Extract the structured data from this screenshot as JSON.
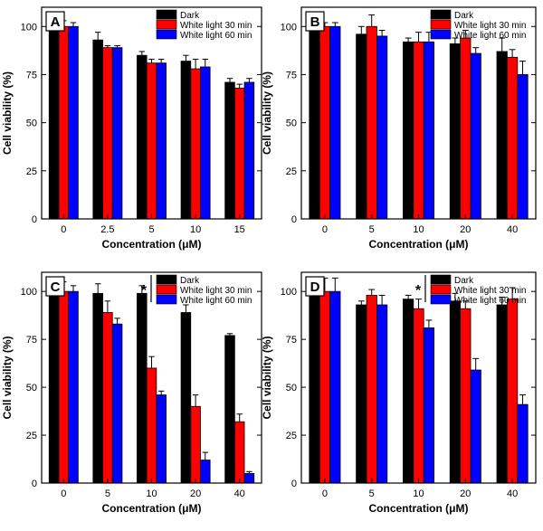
{
  "colors": {
    "Dark": "#000000",
    "White light 30 min": "#ff0000",
    "White light 60 min": "#0000ff"
  },
  "chart_data": [
    {
      "type": "bar",
      "panel_label": "A",
      "xlabel": "Concentration (μM)",
      "ylabel": "Cell viability (%)",
      "ylim": [
        0,
        110
      ],
      "yticks": [
        0,
        25,
        50,
        75,
        100
      ],
      "categories": [
        "0",
        "2.5",
        "5",
        "10",
        "15"
      ],
      "legend_position": "top-right",
      "significance_mark": "",
      "series": [
        {
          "name": "Dark",
          "values": [
            100,
            93,
            85,
            82,
            71
          ],
          "errors": [
            5,
            4,
            2,
            3,
            2
          ]
        },
        {
          "name": "White light 30 min",
          "values": [
            100,
            89,
            81,
            78,
            68
          ],
          "errors": [
            3,
            1,
            2,
            5,
            2
          ]
        },
        {
          "name": "White light 60 min",
          "values": [
            100,
            89,
            81,
            79,
            71
          ],
          "errors": [
            2,
            1,
            2,
            4,
            2
          ]
        }
      ]
    },
    {
      "type": "bar",
      "panel_label": "B",
      "xlabel": "Concentration (μM)",
      "ylabel": "Cell viability (%)",
      "ylim": [
        0,
        110
      ],
      "yticks": [
        0,
        25,
        50,
        75,
        100
      ],
      "categories": [
        "0",
        "5",
        "10",
        "20",
        "40"
      ],
      "legend_position": "top-right",
      "significance_mark": "",
      "series": [
        {
          "name": "Dark",
          "values": [
            100,
            96,
            92,
            91,
            87
          ],
          "errors": [
            2,
            4,
            2,
            3,
            7
          ]
        },
        {
          "name": "White light 30 min",
          "values": [
            100,
            100,
            92,
            94,
            84
          ],
          "errors": [
            2,
            6,
            5,
            4,
            4
          ]
        },
        {
          "name": "White light 60 min",
          "values": [
            100,
            95,
            92,
            86,
            75
          ],
          "errors": [
            2,
            3,
            5,
            3,
            7
          ]
        }
      ]
    },
    {
      "type": "bar",
      "panel_label": "C",
      "xlabel": "Concentration (μM)",
      "ylabel": "Cell viability (%)",
      "ylim": [
        0,
        110
      ],
      "yticks": [
        0,
        25,
        50,
        75,
        100
      ],
      "categories": [
        "0",
        "5",
        "10",
        "20",
        "40"
      ],
      "legend_position": "top-right",
      "significance_mark": "*",
      "series": [
        {
          "name": "Dark",
          "values": [
            100,
            99,
            99,
            89,
            77
          ],
          "errors": [
            5,
            5,
            4,
            4,
            1
          ]
        },
        {
          "name": "White light 30 min",
          "values": [
            100,
            89,
            60,
            40,
            32
          ],
          "errors": [
            5,
            6,
            6,
            6,
            4
          ]
        },
        {
          "name": "White light 60 min",
          "values": [
            100,
            83,
            46,
            12,
            5
          ],
          "errors": [
            3,
            3,
            2,
            4,
            1
          ]
        }
      ]
    },
    {
      "type": "bar",
      "panel_label": "D",
      "xlabel": "Concentration (μM)",
      "ylabel": "Cell viability (%)",
      "ylim": [
        0,
        110
      ],
      "yticks": [
        0,
        25,
        50,
        75,
        100
      ],
      "categories": [
        "0",
        "5",
        "10",
        "20",
        "40"
      ],
      "legend_position": "top-right",
      "significance_mark": "*",
      "series": [
        {
          "name": "Dark",
          "values": [
            100,
            93,
            96,
            95,
            93
          ],
          "errors": [
            2,
            2,
            2,
            4,
            4
          ]
        },
        {
          "name": "White light 30 min",
          "values": [
            100,
            98,
            91,
            91,
            96
          ],
          "errors": [
            7,
            3,
            5,
            4,
            6
          ]
        },
        {
          "name": "White light 60 min",
          "values": [
            100,
            93,
            81,
            59,
            41
          ],
          "errors": [
            7,
            5,
            4,
            6,
            5
          ]
        }
      ]
    }
  ]
}
